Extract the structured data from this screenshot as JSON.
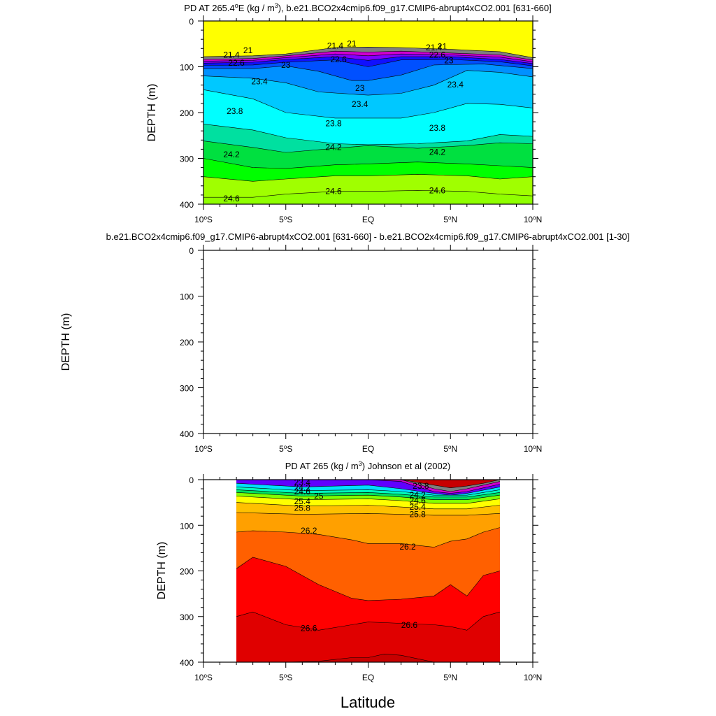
{
  "chart_data": [
    {
      "type": "contour",
      "title_parts": {
        "pre": "PD AT 265.4",
        "deg": "o",
        "mid": "E (kg / m",
        "sup": "3",
        "post": "), b.e21.BCO2x4cmip6.f09_g17.CMIP6-abrupt4xCO2.001 [631-660]"
      },
      "title": "PD AT 265.4°E (kg / m3), b.e21.BCO2x4cmip6.f09_g17.CMIP6-abrupt4xCO2.001 [631-660]",
      "ylabel": "DEPTH (m)",
      "xlabel": "",
      "xlim": [
        -10,
        10
      ],
      "ylim": [
        400,
        0
      ],
      "y_ticks": [
        "0",
        "100",
        "200",
        "300",
        "400"
      ],
      "x_ticks": [
        {
          "num": "10",
          "sup": "o",
          "hem": "S"
        },
        {
          "num": "5",
          "sup": "o",
          "hem": "S"
        },
        {
          "num": "EQ",
          "sup": "",
          "hem": ""
        },
        {
          "num": "5",
          "sup": "o",
          "hem": "N"
        },
        {
          "num": "10",
          "sup": "o",
          "hem": "N"
        }
      ],
      "fill_bottom": "#ffff00",
      "contours": [
        {
          "level": 21.0,
          "color": "#7e7e7e",
          "x": [
            -10,
            -7,
            -5,
            -2,
            0,
            2,
            5,
            8,
            10
          ],
          "y": [
            78,
            76,
            72,
            58,
            57,
            58,
            62,
            67,
            80
          ]
        },
        {
          "level": 21.4,
          "color": "#d000d0",
          "x": [
            -10,
            -7,
            -5,
            -2,
            0,
            2,
            5,
            8,
            10
          ],
          "y": [
            84,
            82,
            76,
            66,
            68,
            66,
            70,
            74,
            85
          ]
        },
        {
          "level": 21.8,
          "color": "#8000ff",
          "x": [
            -10,
            -7,
            -5,
            -2,
            0,
            2,
            5,
            8,
            10
          ],
          "y": [
            88,
            86,
            80,
            72,
            76,
            72,
            74,
            79,
            89
          ]
        },
        {
          "level": 22.2,
          "color": "#1010ff",
          "x": [
            -10,
            -7,
            -5,
            -2,
            0,
            2,
            5,
            8,
            10
          ],
          "y": [
            92,
            90,
            84,
            78,
            86,
            78,
            78,
            84,
            93
          ]
        },
        {
          "level": 22.6,
          "color": "#0050ff",
          "x": [
            -10,
            -7,
            -5,
            -2,
            0,
            2,
            5,
            8,
            10
          ],
          "y": [
            97,
            96,
            90,
            85,
            100,
            85,
            84,
            89,
            98
          ]
        },
        {
          "level": 23.0,
          "color": "#0090ff",
          "x": [
            -10,
            -7,
            -5,
            -3,
            -1,
            0,
            2,
            4,
            7,
            10
          ],
          "y": [
            104,
            104,
            98,
            110,
            130,
            130,
            118,
            96,
            94,
            104
          ]
        },
        {
          "level": 23.4,
          "color": "#00c8ff",
          "x": [
            -10,
            -7,
            -5,
            -3,
            0,
            2,
            4,
            6,
            8,
            10
          ],
          "y": [
            120,
            125,
            135,
            155,
            162,
            158,
            140,
            108,
            112,
            122
          ]
        },
        {
          "level": 23.8,
          "color": "#00ffff",
          "x": [
            -10,
            -7,
            -5,
            -2,
            0,
            2,
            4,
            6,
            8,
            10
          ],
          "y": [
            150,
            170,
            200,
            212,
            212,
            212,
            200,
            180,
            182,
            190
          ]
        },
        {
          "level": 24.2,
          "color": "#00e0a0",
          "x": [
            -10,
            -7,
            -5,
            -2,
            0,
            3,
            6,
            8,
            10
          ],
          "y": [
            225,
            238,
            255,
            268,
            270,
            268,
            262,
            248,
            252
          ]
        },
        {
          "level": 24.6,
          "color": "#00e040",
          "x": [
            -10,
            -7,
            -5,
            -2,
            0,
            3,
            6,
            8,
            10
          ],
          "y": [
            262,
            276,
            287,
            278,
            272,
            278,
            272,
            266,
            268
          ]
        },
        {
          "level": 25.0,
          "color": "#00ff00",
          "x": [
            -10,
            -7,
            -5,
            -2,
            0,
            3,
            6,
            8,
            10
          ],
          "y": [
            300,
            320,
            322,
            314,
            312,
            308,
            312,
            316,
            320
          ]
        },
        {
          "level": 25.4,
          "color": "#a0ff00",
          "x": [
            -10,
            -7,
            -5,
            -2,
            0,
            3,
            6,
            8,
            10
          ],
          "y": [
            340,
            350,
            345,
            338,
            338,
            335,
            338,
            345,
            340
          ]
        },
        {
          "level": 25.8,
          "color": "#90ff00",
          "x": [
            -10,
            -7,
            -5,
            -2,
            0,
            3,
            6,
            8,
            10
          ],
          "y": [
            385,
            385,
            378,
            372,
            372,
            370,
            372,
            378,
            382
          ]
        }
      ],
      "labels": [
        {
          "text": "21",
          "x": -7.3,
          "y": 70
        },
        {
          "text": "21.4",
          "x": -8.3,
          "y": 80
        },
        {
          "text": "22.6",
          "x": -8.0,
          "y": 98
        },
        {
          "text": "23",
          "x": -5.0,
          "y": 102
        },
        {
          "text": "22.6",
          "x": -1.8,
          "y": 90
        },
        {
          "text": "21",
          "x": -1.0,
          "y": 56
        },
        {
          "text": "21.4",
          "x": -2.0,
          "y": 60
        },
        {
          "text": "21",
          "x": 4.5,
          "y": 62
        },
        {
          "text": "21.4",
          "x": 4.0,
          "y": 64
        },
        {
          "text": "22.6",
          "x": 4.2,
          "y": 80
        },
        {
          "text": "23",
          "x": 4.9,
          "y": 92
        },
        {
          "text": "23.4",
          "x": -6.6,
          "y": 138
        },
        {
          "text": "23",
          "x": -0.5,
          "y": 153
        },
        {
          "text": "23.4",
          "x": 5.3,
          "y": 145
        },
        {
          "text": "23.4",
          "x": -0.5,
          "y": 188
        },
        {
          "text": "23.8",
          "x": -8.1,
          "y": 203
        },
        {
          "text": "23.8",
          "x": -2.1,
          "y": 230
        },
        {
          "text": "23.8",
          "x": 4.2,
          "y": 240
        },
        {
          "text": "24.2",
          "x": -8.3,
          "y": 298
        },
        {
          "text": "24.2",
          "x": -2.1,
          "y": 282
        },
        {
          "text": "24.2",
          "x": 4.2,
          "y": 292
        },
        {
          "text": "24.6",
          "x": -8.3,
          "y": 394
        },
        {
          "text": "24.6",
          "x": -2.1,
          "y": 378
        },
        {
          "text": "24.6",
          "x": 4.2,
          "y": 376
        }
      ]
    },
    {
      "type": "contour",
      "title": "b.e21.BCO2x4cmip6.f09_g17.CMIP6-abrupt4xCO2.001 [631-660] - b.e21.BCO2x4cmip6.f09_g17.CMIP6-abrupt4xCO2.001 [1-30]",
      "ylabel": "DEPTH (m)",
      "xlabel": "",
      "xlim": [
        -10,
        10
      ],
      "ylim": [
        400,
        0
      ],
      "y_ticks": [
        "0",
        "100",
        "200",
        "300",
        "400"
      ],
      "x_ticks": [
        {
          "num": "10",
          "sup": "o",
          "hem": "S"
        },
        {
          "num": "5",
          "sup": "o",
          "hem": "S"
        },
        {
          "num": "EQ",
          "sup": "",
          "hem": ""
        },
        {
          "num": "5",
          "sup": "o",
          "hem": "N"
        },
        {
          "num": "10",
          "sup": "o",
          "hem": "N"
        }
      ],
      "contours": [],
      "labels": []
    },
    {
      "type": "contour",
      "title_parts": {
        "pre": "PD AT 265 (kg / m",
        "sup": "3",
        "post": ") Johnson et al (2002)"
      },
      "title": "PD AT 265 (kg / m3) Johnson et al (2002)",
      "ylabel": "DEPTH (m)",
      "xlabel": "Latitude",
      "xlim": [
        -10,
        10
      ],
      "ylim": [
        400,
        0
      ],
      "data_xlim": [
        -8,
        8
      ],
      "y_ticks": [
        "0",
        "100",
        "200",
        "300",
        "400"
      ],
      "x_ticks": [
        {
          "num": "10",
          "sup": "o",
          "hem": "S"
        },
        {
          "num": "5",
          "sup": "o",
          "hem": "S"
        },
        {
          "num": "EQ",
          "sup": "",
          "hem": ""
        },
        {
          "num": "5",
          "sup": "o",
          "hem": "N"
        },
        {
          "num": "10",
          "sup": "o",
          "hem": "N"
        }
      ],
      "fill_bottom": "#c80000",
      "contours": [
        {
          "level": 22.6,
          "color": "#7e7e7e",
          "x": [
            -8,
            -4,
            0,
            2,
            3,
            4,
            5,
            6,
            7,
            8
          ],
          "y": [
            0,
            0,
            0,
            0,
            6,
            12,
            18,
            14,
            8,
            0
          ]
        },
        {
          "level": 23.0,
          "color": "#d000d0",
          "x": [
            -8,
            -4,
            0,
            2,
            3,
            4,
            5,
            6,
            7,
            8
          ],
          "y": [
            0,
            0,
            0,
            0,
            10,
            20,
            26,
            20,
            12,
            4
          ]
        },
        {
          "level": 23.4,
          "color": "#6000ff",
          "x": [
            -8,
            -6,
            -4,
            0,
            2,
            3,
            4,
            5,
            6,
            7,
            8
          ],
          "y": [
            0,
            0,
            0,
            0,
            4,
            16,
            26,
            30,
            26,
            18,
            10
          ]
        },
        {
          "level": 23.8,
          "color": "#00e0ff",
          "x": [
            -8,
            -6,
            -5,
            -4,
            0,
            2,
            4,
            5,
            6,
            8
          ],
          "y": [
            8,
            12,
            14,
            16,
            12,
            20,
            30,
            34,
            30,
            16
          ]
        },
        {
          "level": 24.2,
          "color": "#00ffc0",
          "x": [
            -8,
            -6,
            -4,
            0,
            2,
            4,
            6,
            8
          ],
          "y": [
            16,
            20,
            24,
            22,
            26,
            34,
            34,
            22
          ]
        },
        {
          "level": 24.6,
          "color": "#00e060",
          "x": [
            -8,
            -6,
            -4,
            0,
            2,
            4,
            6,
            8
          ],
          "y": [
            22,
            26,
            30,
            28,
            32,
            38,
            38,
            28
          ]
        },
        {
          "level": 25.0,
          "color": "#80ff00",
          "x": [
            -8,
            -6,
            -4,
            0,
            2,
            4,
            6,
            8
          ],
          "y": [
            28,
            32,
            36,
            34,
            38,
            44,
            44,
            34
          ]
        },
        {
          "level": 25.4,
          "color": "#ffff00",
          "x": [
            -8,
            -6,
            -4,
            0,
            2,
            4,
            6,
            8
          ],
          "y": [
            36,
            40,
            44,
            42,
            46,
            52,
            52,
            42
          ]
        },
        {
          "level": 25.8,
          "color": "#ffc000",
          "x": [
            -8,
            -6,
            -4,
            0,
            2,
            4,
            6,
            8
          ],
          "y": [
            50,
            54,
            58,
            56,
            60,
            64,
            64,
            56
          ]
        },
        {
          "level": 26.0,
          "color": "#ffa000",
          "x": [
            -8,
            -6,
            -4,
            0,
            2,
            4,
            6,
            8
          ],
          "y": [
            72,
            74,
            76,
            74,
            76,
            78,
            78,
            74
          ]
        },
        {
          "level": 26.2,
          "color": "#ff6000",
          "x": [
            -8,
            -7,
            -5,
            -3,
            -1,
            0,
            2,
            4,
            5,
            6,
            7,
            8
          ],
          "y": [
            115,
            112,
            115,
            120,
            132,
            140,
            140,
            148,
            135,
            130,
            115,
            105
          ]
        },
        {
          "level": 26.4,
          "color": "#ff0000",
          "x": [
            -8,
            -7,
            -5,
            -3,
            -1,
            0,
            2,
            4,
            5,
            6,
            7,
            8
          ],
          "y": [
            195,
            170,
            190,
            230,
            260,
            265,
            262,
            255,
            230,
            255,
            210,
            200
          ]
        },
        {
          "level": 26.6,
          "color": "#e00000",
          "x": [
            -8,
            -7,
            -5,
            -3,
            -1,
            0,
            2,
            4,
            5,
            6,
            7,
            8
          ],
          "y": [
            300,
            290,
            318,
            330,
            318,
            312,
            315,
            318,
            322,
            330,
            300,
            290
          ]
        },
        {
          "level": 26.8,
          "color": "#c80000",
          "x": [
            -8,
            -5,
            -3,
            -1,
            0,
            1,
            2,
            4,
            8
          ],
          "y": [
            400,
            400,
            398,
            390,
            390,
            382,
            385,
            400,
            400
          ]
        }
      ],
      "labels": [
        {
          "text": "23.4",
          "x": -4.0,
          "y": 12
        },
        {
          "text": "24.2",
          "x": -4.0,
          "y": 24
        },
        {
          "text": "24.6",
          "x": -4.0,
          "y": 32
        },
        {
          "text": "25",
          "x": -3.0,
          "y": 42
        },
        {
          "text": "25.4",
          "x": -4.0,
          "y": 54
        },
        {
          "text": "25.8",
          "x": -4.0,
          "y": 68
        },
        {
          "text": "23.8",
          "x": 3.2,
          "y": 20
        },
        {
          "text": "24.2",
          "x": 3.0,
          "y": 40
        },
        {
          "text": "24.6",
          "x": 3.0,
          "y": 52
        },
        {
          "text": "25.4",
          "x": 3.0,
          "y": 66
        },
        {
          "text": "25.8",
          "x": 3.0,
          "y": 82
        },
        {
          "text": "26.2",
          "x": -3.6,
          "y": 118
        },
        {
          "text": "26.2",
          "x": 2.4,
          "y": 153
        },
        {
          "text": "26.6",
          "x": -3.6,
          "y": 332
        },
        {
          "text": "26.6",
          "x": 2.5,
          "y": 325
        }
      ]
    }
  ]
}
